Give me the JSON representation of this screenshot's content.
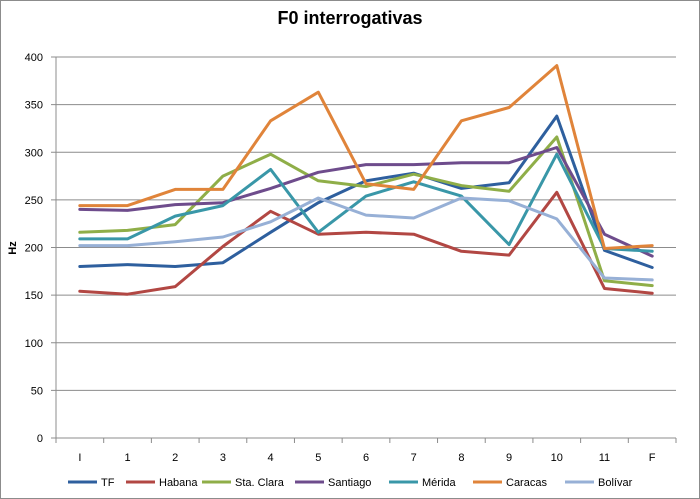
{
  "chart_data": {
    "type": "line",
    "title": "F0 interrogativas",
    "ylabel": "Hz",
    "xlabel": "",
    "ylim": [
      0,
      400
    ],
    "yticks": [
      0,
      50,
      100,
      150,
      200,
      250,
      300,
      350,
      400
    ],
    "grid": true,
    "legend_position": "bottom",
    "categories": [
      "I",
      "1",
      "2",
      "3",
      "4",
      "5",
      "6",
      "7",
      "8",
      "9",
      "10",
      "11",
      "F"
    ],
    "series": [
      {
        "name": "TF",
        "color": "#2e5f9e",
        "values": [
          180,
          182,
          180,
          184,
          216,
          247,
          270,
          278,
          262,
          268,
          338,
          197,
          179
        ]
      },
      {
        "name": "Habana",
        "color": "#b24743",
        "values": [
          154,
          151,
          159,
          201,
          238,
          214,
          216,
          214,
          196,
          192,
          258,
          157,
          152
        ]
      },
      {
        "name": "Sta. Clara",
        "color": "#8fae48",
        "values": [
          216,
          218,
          224,
          275,
          298,
          270,
          264,
          277,
          265,
          259,
          316,
          165,
          160
        ]
      },
      {
        "name": "Santiago",
        "color": "#6e4c8c",
        "values": [
          240,
          239,
          245,
          247,
          262,
          279,
          287,
          287,
          289,
          289,
          305,
          214,
          191
        ]
      },
      {
        "name": "Mérida",
        "color": "#3997a8",
        "values": [
          209,
          209,
          233,
          244,
          282,
          216,
          254,
          269,
          254,
          203,
          298,
          199,
          196
        ]
      },
      {
        "name": "Caracas",
        "color": "#e0843a",
        "values": [
          244,
          244,
          261,
          261,
          333,
          363,
          267,
          261,
          333,
          347,
          391,
          199,
          202
        ]
      },
      {
        "name": "Bolívar",
        "color": "#97b0d6",
        "values": [
          202,
          202,
          206,
          211,
          227,
          252,
          234,
          231,
          252,
          249,
          230,
          168,
          166
        ]
      }
    ]
  }
}
